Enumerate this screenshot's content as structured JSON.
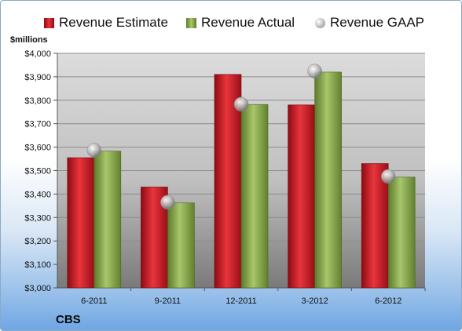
{
  "legend": {
    "estimate": "Revenue Estimate",
    "actual": "Revenue Actual",
    "gaap": "Revenue GAAP"
  },
  "ylabel": "$millions",
  "company": "CBS",
  "colors": {
    "estimate": "#c8111c",
    "actual": "#8aac4a",
    "gaap": "#c9c9c9"
  },
  "chart_data": {
    "type": "bar",
    "categories": [
      "6-2011",
      "9-2011",
      "12-2011",
      "3-2012",
      "6-2012"
    ],
    "series": [
      {
        "name": "Revenue Estimate",
        "values": [
          3555,
          3430,
          3910,
          3780,
          3530
        ]
      },
      {
        "name": "Revenue Actual",
        "values": [
          3583,
          3362,
          3782,
          3920,
          3472
        ]
      },
      {
        "name": "Revenue GAAP",
        "values": [
          3587,
          3365,
          3783,
          3924,
          3475
        ]
      }
    ],
    "ylabel": "$millions",
    "ylim": [
      3000,
      4000
    ],
    "yticks": [
      "$3,000",
      "$3,100",
      "$3,200",
      "$3,300",
      "$3,400",
      "$3,500",
      "$3,600",
      "$3,700",
      "$3,800",
      "$3,900",
      "$4,000"
    ],
    "grid": true,
    "legend_position": "top"
  }
}
